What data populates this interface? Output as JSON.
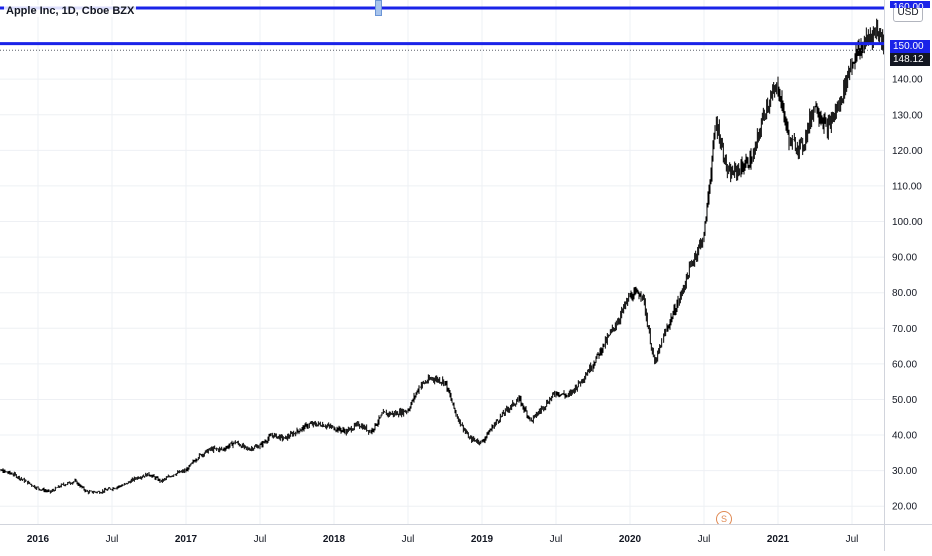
{
  "header": {
    "symbol_title": "Apple Inc, 1D, Cboe BZX"
  },
  "price_scale": {
    "currency": "USD",
    "top_partial_label": "160.00",
    "level_label": "150.00",
    "last_price_label": "148.12"
  },
  "dividend_marker": {
    "label": "S"
  },
  "colors": {
    "candle": "#000000",
    "horizontal_line": "#1a23e8",
    "last_price_bg": "#131722",
    "level_label_bg": "#1a23e8",
    "grid": "#eef0f4"
  },
  "chart_data": {
    "type": "line",
    "title": "Apple Inc, 1D, Cboe BZX",
    "ylim": [
      15,
      162
    ],
    "y_ticks": [
      20,
      30,
      40,
      50,
      60,
      70,
      80,
      90,
      100,
      110,
      120,
      130,
      140
    ],
    "y_tick_labels": [
      "20.00",
      "30.00",
      "40.00",
      "50.00",
      "60.00",
      "70.00",
      "80.00",
      "90.00",
      "100.00",
      "110.00",
      "120.00",
      "130.00",
      "140.00"
    ],
    "x_ticks": [
      {
        "date": "2016-01",
        "label": "2016",
        "major": true
      },
      {
        "date": "2016-07",
        "label": "Jul",
        "major": false
      },
      {
        "date": "2017-01",
        "label": "2017",
        "major": true
      },
      {
        "date": "2017-07",
        "label": "Jul",
        "major": false
      },
      {
        "date": "2018-01",
        "label": "2018",
        "major": true
      },
      {
        "date": "2018-07",
        "label": "Jul",
        "major": false
      },
      {
        "date": "2019-01",
        "label": "2019",
        "major": true
      },
      {
        "date": "2019-07",
        "label": "Jul",
        "major": false
      },
      {
        "date": "2020-01",
        "label": "2020",
        "major": true
      },
      {
        "date": "2020-07",
        "label": "Jul",
        "major": false
      },
      {
        "date": "2021-01",
        "label": "2021",
        "major": true
      },
      {
        "date": "2021-07",
        "label": "Jul",
        "major": false
      }
    ],
    "horizontal_lines": [
      160,
      150
    ],
    "last_price": 148.12,
    "series": [
      {
        "points": [
          [
            "2015-09",
            28
          ],
          [
            "2015-10",
            30
          ],
          [
            "2015-11",
            29
          ],
          [
            "2015-12",
            27
          ],
          [
            "2016-01",
            25
          ],
          [
            "2016-02",
            24
          ],
          [
            "2016-03",
            26
          ],
          [
            "2016-04",
            27
          ],
          [
            "2016-05",
            24
          ],
          [
            "2016-06",
            24
          ],
          [
            "2016-07",
            25
          ],
          [
            "2016-08",
            26
          ],
          [
            "2016-09",
            28
          ],
          [
            "2016-10",
            29
          ],
          [
            "2016-11",
            27
          ],
          [
            "2016-12",
            29
          ],
          [
            "2017-01",
            30
          ],
          [
            "2017-02",
            34
          ],
          [
            "2017-03",
            36
          ],
          [
            "2017-04",
            36
          ],
          [
            "2017-05",
            38
          ],
          [
            "2017-06",
            36
          ],
          [
            "2017-07",
            37
          ],
          [
            "2017-08",
            40
          ],
          [
            "2017-09",
            39
          ],
          [
            "2017-10",
            41
          ],
          [
            "2017-11",
            43
          ],
          [
            "2017-12",
            43
          ],
          [
            "2018-01",
            42
          ],
          [
            "2018-02",
            41
          ],
          [
            "2018-03",
            43
          ],
          [
            "2018-04",
            41
          ],
          [
            "2018-05",
            46
          ],
          [
            "2018-06",
            46
          ],
          [
            "2018-07",
            47
          ],
          [
            "2018-08",
            54
          ],
          [
            "2018-09",
            56
          ],
          [
            "2018-10",
            55
          ],
          [
            "2018-11",
            45
          ],
          [
            "2018-12",
            39
          ],
          [
            "2019-01",
            38
          ],
          [
            "2019-02",
            43
          ],
          [
            "2019-03",
            47
          ],
          [
            "2019-04",
            50
          ],
          [
            "2019-05",
            44
          ],
          [
            "2019-06",
            48
          ],
          [
            "2019-07",
            52
          ],
          [
            "2019-08",
            51
          ],
          [
            "2019-09",
            55
          ],
          [
            "2019-10",
            60
          ],
          [
            "2019-11",
            66
          ],
          [
            "2019-12",
            72
          ],
          [
            "2020-01",
            79
          ],
          [
            "2020-02",
            80
          ],
          [
            "2020-03",
            60
          ],
          [
            "2020-04",
            70
          ],
          [
            "2020-05",
            78
          ],
          [
            "2020-06",
            88
          ],
          [
            "2020-07",
            96
          ],
          [
            "2020-08",
            128
          ],
          [
            "2020-09",
            113
          ],
          [
            "2020-10",
            115
          ],
          [
            "2020-11",
            118
          ],
          [
            "2020-12",
            132
          ],
          [
            "2021-01",
            138
          ],
          [
            "2021-02",
            122
          ],
          [
            "2021-03",
            121
          ],
          [
            "2021-04",
            133
          ],
          [
            "2021-05",
            126
          ],
          [
            "2021-06",
            133
          ],
          [
            "2021-07",
            145
          ],
          [
            "2021-08",
            150
          ],
          [
            "2021-09",
            154
          ],
          [
            "2021-10",
            148
          ]
        ]
      }
    ]
  }
}
